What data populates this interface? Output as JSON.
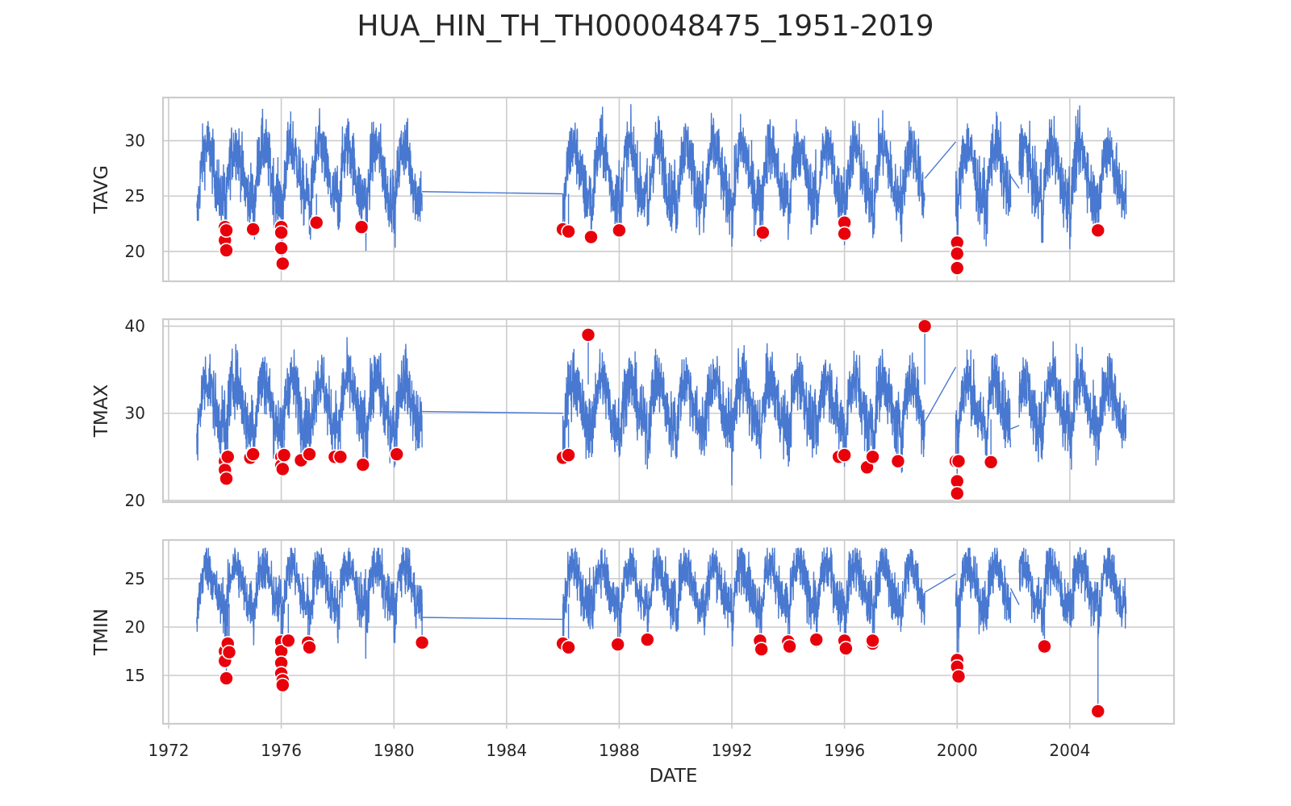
{
  "figure": {
    "title": "HUA_HIN_TH_TH000048475_1951-2019",
    "xlabel": "DATE",
    "line_color": "#4878d0",
    "anomaly_color": "#e8000b",
    "grid_color": "#cccccc"
  },
  "chart_data": [
    {
      "type": "line",
      "id": "tavg",
      "ylabel": "TAVG",
      "xlim": [
        1971.8,
        2007.7
      ],
      "ylim": [
        17.3,
        33.9
      ],
      "yticks": [
        20,
        25,
        30
      ],
      "xticks": [
        "1972",
        "1976",
        "1980",
        "1984",
        "1988",
        "1992",
        "1996",
        "2000",
        "2004"
      ],
      "tick_values": [
        1972,
        1976,
        1980,
        1984,
        1988,
        1992,
        1996,
        2000,
        2004
      ],
      "series": [
        {
          "segments": [
            [
              1973.0,
              1981.0
            ],
            [
              1986.0,
              1998.85
            ],
            [
              1999.95,
              2001.9
            ],
            [
              2002.2,
              2006.0
            ]
          ],
          "base": 27.2,
          "amp": 2.3,
          "noise": 1.4,
          "bridges": [
            [
              1981.0,
              25.4,
              1986.0,
              25.2
            ],
            [
              1998.85,
              26.6,
              1999.95,
              29.9
            ],
            [
              2001.9,
              26.8,
              2002.2,
              25.7
            ]
          ],
          "max_value": 33.3
        }
      ],
      "anomalies": [
        [
          1974.0,
          22.2
        ],
        [
          1974.0,
          21.0
        ],
        [
          1974.05,
          20.1
        ],
        [
          1974.05,
          21.9
        ],
        [
          1975.0,
          22.0
        ],
        [
          1976.0,
          22.2
        ],
        [
          1976.0,
          21.7
        ],
        [
          1976.0,
          20.3
        ],
        [
          1976.05,
          18.9
        ],
        [
          1977.25,
          22.6
        ],
        [
          1978.85,
          22.2
        ],
        [
          1986.0,
          22.0
        ],
        [
          1986.2,
          21.8
        ],
        [
          1987.0,
          21.3
        ],
        [
          1988.0,
          21.9
        ],
        [
          1993.1,
          21.7
        ],
        [
          1996.0,
          22.6
        ],
        [
          1996.0,
          21.6
        ],
        [
          2000.0,
          20.8
        ],
        [
          2000.0,
          19.8
        ],
        [
          2000.0,
          18.5
        ],
        [
          2005.0,
          21.9
        ]
      ]
    },
    {
      "type": "line",
      "id": "tmax",
      "ylabel": "TMAX",
      "xlim": [
        1971.8,
        2007.7
      ],
      "ylim": [
        19.8,
        40.8
      ],
      "yticks": [
        20,
        30,
        40
      ],
      "xticks": [
        "1972",
        "1976",
        "1980",
        "1984",
        "1988",
        "1992",
        "1996",
        "2000",
        "2004"
      ],
      "tick_values": [
        1972,
        1976,
        1980,
        1984,
        1988,
        1992,
        1996,
        2000,
        2004
      ],
      "series": [
        {
          "segments": [
            [
              1973.0,
              1981.0
            ],
            [
              1986.0,
              1998.85
            ],
            [
              1999.95,
              2001.9
            ],
            [
              2002.2,
              2006.0
            ]
          ],
          "base": 31.3,
          "amp": 2.6,
          "noise": 1.8,
          "bridges": [
            [
              1981.0,
              30.2,
              1986.0,
              30.0
            ],
            [
              1998.85,
              29.0,
              1999.95,
              35.3
            ],
            [
              2001.9,
              28.2,
              2002.2,
              28.6
            ]
          ],
          "max_value": 40.0
        }
      ],
      "anomalies": [
        [
          1974.0,
          24.5
        ],
        [
          1974.0,
          23.5
        ],
        [
          1974.05,
          22.5
        ],
        [
          1974.1,
          25.0
        ],
        [
          1974.9,
          24.9
        ],
        [
          1975.0,
          25.3
        ],
        [
          1976.0,
          25.0
        ],
        [
          1976.0,
          24.0
        ],
        [
          1976.05,
          23.6
        ],
        [
          1976.1,
          25.2
        ],
        [
          1976.7,
          24.6
        ],
        [
          1977.0,
          25.3
        ],
        [
          1977.9,
          25.0
        ],
        [
          1978.1,
          25.0
        ],
        [
          1978.9,
          24.1
        ],
        [
          1980.1,
          25.3
        ],
        [
          1986.0,
          24.9
        ],
        [
          1986.2,
          25.2
        ],
        [
          1986.9,
          39.0
        ],
        [
          1995.8,
          25.0
        ],
        [
          1996.0,
          25.2
        ],
        [
          1996.8,
          23.8
        ],
        [
          1997.0,
          25.0
        ],
        [
          1997.9,
          24.5
        ],
        [
          1998.85,
          40.0
        ],
        [
          1999.95,
          24.5
        ],
        [
          2000.05,
          24.5
        ],
        [
          2000.0,
          22.2
        ],
        [
          2000.0,
          20.8
        ],
        [
          2001.2,
          24.4
        ]
      ]
    },
    {
      "type": "line",
      "id": "tmin",
      "ylabel": "TMIN",
      "xlim": [
        1971.8,
        2007.7
      ],
      "ylim": [
        10.0,
        29.0
      ],
      "yticks": [
        15,
        20,
        25
      ],
      "xticks": [
        "1972",
        "1976",
        "1980",
        "1984",
        "1988",
        "1992",
        "1996",
        "2000",
        "2004"
      ],
      "tick_values": [
        1972,
        1976,
        1980,
        1984,
        1988,
        1992,
        1996,
        2000,
        2004
      ],
      "series": [
        {
          "segments": [
            [
              1973.0,
              1981.0
            ],
            [
              1986.0,
              1998.85
            ],
            [
              1999.95,
              2001.9
            ],
            [
              2002.2,
              2006.0
            ]
          ],
          "base": 24.4,
          "amp": 2.0,
          "noise": 1.3,
          "bridges": [
            [
              1981.0,
              21.0,
              1986.0,
              20.8
            ],
            [
              1998.85,
              23.6,
              1999.95,
              25.5
            ],
            [
              2001.9,
              24.0,
              2002.2,
              22.3
            ]
          ],
          "max_value": 28.2
        }
      ],
      "anomalies": [
        [
          1974.0,
          17.5
        ],
        [
          1974.0,
          16.5
        ],
        [
          1974.05,
          14.7
        ],
        [
          1974.1,
          18.3
        ],
        [
          1974.15,
          17.4
        ],
        [
          1976.0,
          18.5
        ],
        [
          1976.0,
          17.5
        ],
        [
          1976.0,
          16.3
        ],
        [
          1976.0,
          15.2
        ],
        [
          1976.05,
          14.5
        ],
        [
          1976.05,
          14.0
        ],
        [
          1976.25,
          18.6
        ],
        [
          1976.95,
          18.4
        ],
        [
          1977.0,
          17.9
        ],
        [
          1981.0,
          18.4
        ],
        [
          1986.0,
          18.3
        ],
        [
          1986.2,
          17.9
        ],
        [
          1987.95,
          18.2
        ],
        [
          1989.0,
          18.7
        ],
        [
          1993.0,
          18.6
        ],
        [
          1993.05,
          17.7
        ],
        [
          1994.0,
          18.5
        ],
        [
          1994.05,
          18.0
        ],
        [
          1995.0,
          18.7
        ],
        [
          1996.0,
          18.6
        ],
        [
          1996.05,
          17.8
        ],
        [
          1997.0,
          18.3
        ],
        [
          1997.0,
          18.6
        ],
        [
          2000.0,
          16.6
        ],
        [
          2000.0,
          15.9
        ],
        [
          2000.05,
          14.9
        ],
        [
          2003.1,
          18.0
        ],
        [
          2005.0,
          11.3
        ]
      ]
    }
  ]
}
